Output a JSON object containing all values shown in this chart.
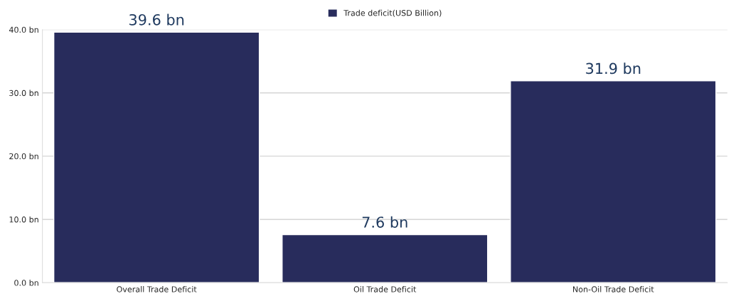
{
  "chart_data": {
    "type": "bar",
    "categories": [
      "Overall Trade Deficit",
      "Oil Trade Deficit",
      "Non-Oil Trade Deficit"
    ],
    "series": [
      {
        "name": "Trade deficit(USD Billion)",
        "color": "#282c5c",
        "values": [
          39.6,
          7.6,
          31.9
        ],
        "value_labels": [
          "39.6 bn",
          "7.6 bn",
          "31.9 bn"
        ]
      }
    ],
    "ylim": [
      0,
      40
    ],
    "yticks": [
      {
        "value": 0,
        "label": "0.0 bn"
      },
      {
        "value": 10,
        "label": "10.0 bn"
      },
      {
        "value": 20,
        "label": "20.0 bn"
      },
      {
        "value": 30,
        "label": "30.0 bn"
      },
      {
        "value": 40,
        "label": "40.0 bn"
      }
    ],
    "grid": "y",
    "legend": "top"
  }
}
